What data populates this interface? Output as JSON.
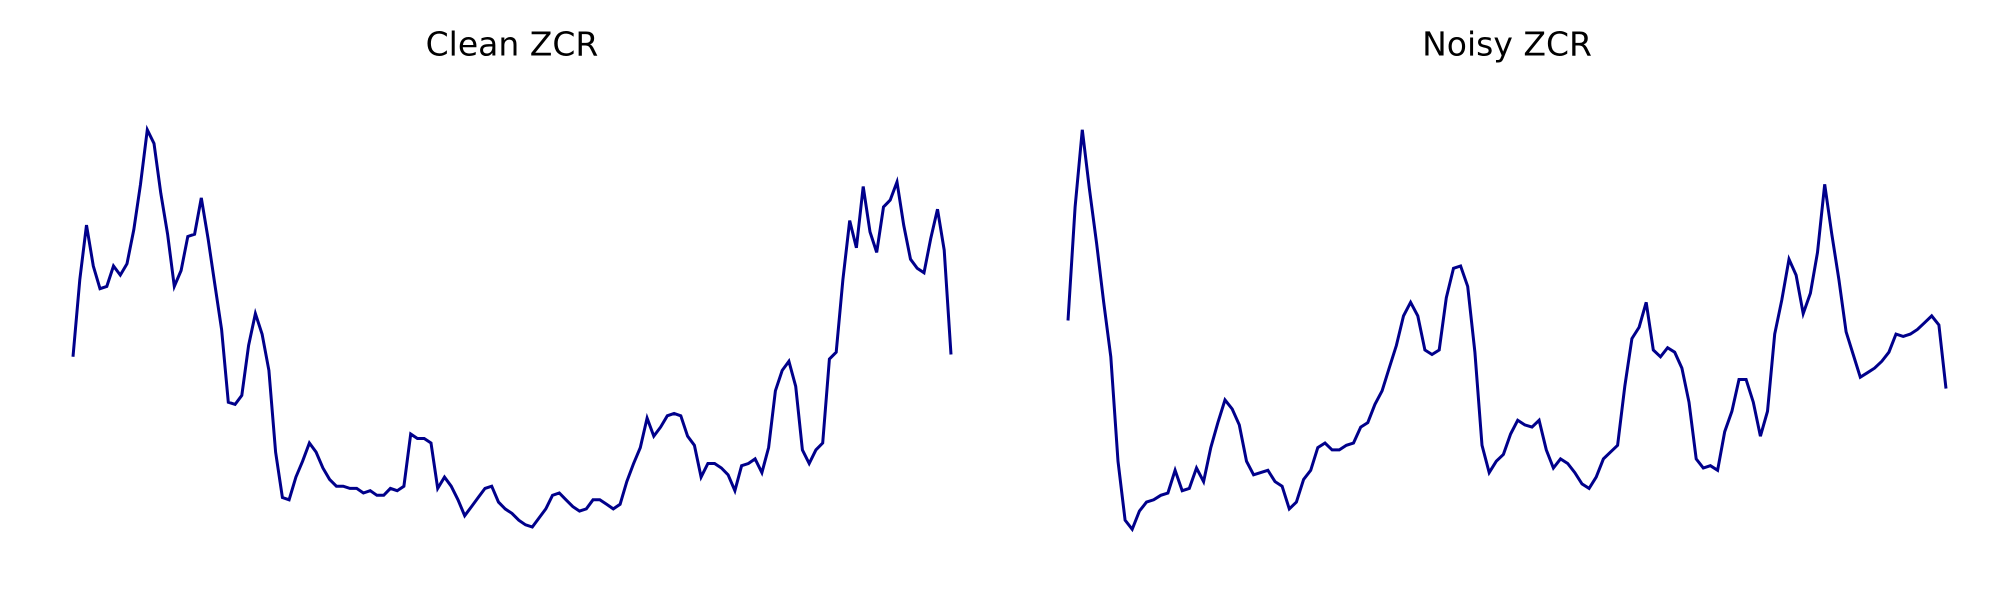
{
  "figure": {
    "panels": [
      {
        "title": "Clean ZCR"
      },
      {
        "title": "Noisy ZCR"
      }
    ]
  },
  "chart_data": [
    {
      "type": "line",
      "title": "Clean ZCR",
      "xlabel": "",
      "ylabel": "",
      "axes_visible": false,
      "grid": false,
      "legend": "none",
      "color": "#00008b",
      "ylim": [
        0,
        1
      ],
      "series": [
        {
          "values": [
            0.43,
            0.6,
            0.72,
            0.63,
            0.58,
            0.585,
            0.63,
            0.61,
            0.635,
            0.71,
            0.81,
            0.93,
            0.9,
            0.79,
            0.7,
            0.585,
            0.62,
            0.695,
            0.7,
            0.78,
            0.69,
            0.59,
            0.49,
            0.33,
            0.325,
            0.345,
            0.455,
            0.525,
            0.48,
            0.4,
            0.22,
            0.12,
            0.115,
            0.165,
            0.2,
            0.24,
            0.22,
            0.185,
            0.16,
            0.145,
            0.145,
            0.14,
            0.14,
            0.13,
            0.135,
            0.125,
            0.125,
            0.14,
            0.135,
            0.145,
            0.26,
            0.25,
            0.25,
            0.24,
            0.14,
            0.165,
            0.145,
            0.115,
            0.08,
            0.1,
            0.12,
            0.14,
            0.145,
            0.11,
            0.095,
            0.085,
            0.07,
            0.06,
            0.055,
            0.075,
            0.095,
            0.125,
            0.13,
            0.115,
            0.1,
            0.09,
            0.095,
            0.115,
            0.115,
            0.105,
            0.095,
            0.105,
            0.155,
            0.195,
            0.23,
            0.295,
            0.255,
            0.275,
            0.3,
            0.305,
            0.3,
            0.255,
            0.235,
            0.165,
            0.195,
            0.195,
            0.185,
            0.17,
            0.135,
            0.19,
            0.195,
            0.205,
            0.175,
            0.23,
            0.355,
            0.4,
            0.42,
            0.365,
            0.225,
            0.195,
            0.225,
            0.24,
            0.425,
            0.44,
            0.6,
            0.73,
            0.67,
            0.805,
            0.705,
            0.66,
            0.76,
            0.775,
            0.815,
            0.72,
            0.645,
            0.625,
            0.615,
            0.69,
            0.755,
            0.665,
            0.435
          ]
        }
      ]
    },
    {
      "type": "line",
      "title": "Noisy ZCR",
      "xlabel": "",
      "ylabel": "",
      "axes_visible": false,
      "grid": false,
      "legend": "none",
      "color": "#00008b",
      "ylim": [
        0,
        1
      ],
      "series": [
        {
          "values": [
            0.51,
            0.76,
            0.93,
            0.8,
            0.68,
            0.55,
            0.43,
            0.2,
            0.07,
            0.05,
            0.09,
            0.11,
            0.115,
            0.125,
            0.13,
            0.18,
            0.135,
            0.14,
            0.185,
            0.155,
            0.23,
            0.285,
            0.335,
            0.315,
            0.28,
            0.2,
            0.17,
            0.175,
            0.18,
            0.155,
            0.145,
            0.095,
            0.11,
            0.16,
            0.18,
            0.23,
            0.24,
            0.225,
            0.225,
            0.235,
            0.24,
            0.275,
            0.285,
            0.325,
            0.355,
            0.405,
            0.455,
            0.52,
            0.55,
            0.52,
            0.445,
            0.435,
            0.445,
            0.56,
            0.625,
            0.63,
            0.585,
            0.44,
            0.235,
            0.175,
            0.2,
            0.215,
            0.26,
            0.29,
            0.28,
            0.275,
            0.29,
            0.225,
            0.185,
            0.205,
            0.195,
            0.175,
            0.15,
            0.14,
            0.165,
            0.205,
            0.22,
            0.235,
            0.365,
            0.47,
            0.495,
            0.55,
            0.445,
            0.43,
            0.45,
            0.44,
            0.405,
            0.33,
            0.205,
            0.185,
            0.19,
            0.18,
            0.265,
            0.31,
            0.38,
            0.38,
            0.33,
            0.255,
            0.31,
            0.48,
            0.555,
            0.645,
            0.61,
            0.525,
            0.57,
            0.66,
            0.81,
            0.7,
            0.6,
            0.485,
            0.435,
            0.385,
            0.395,
            0.405,
            0.42,
            0.44,
            0.48,
            0.475,
            0.48,
            0.49,
            0.505,
            0.52,
            0.5,
            0.36
          ]
        }
      ]
    }
  ]
}
